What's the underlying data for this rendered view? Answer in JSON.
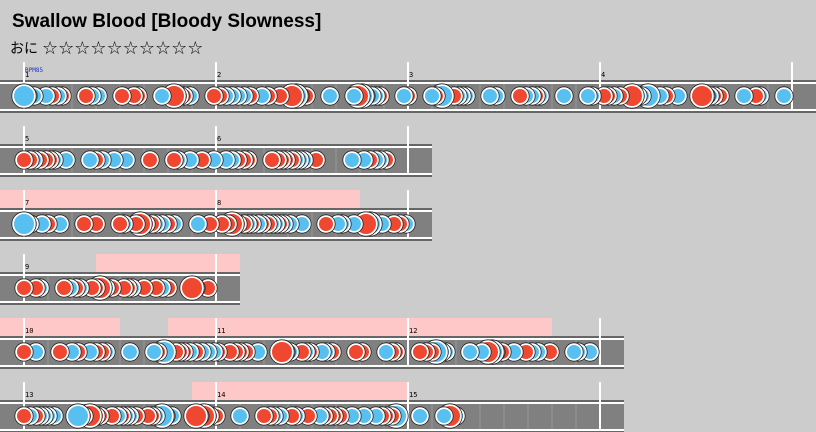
{
  "header": {
    "title": "Swallow Blood [Bloody Slowness]",
    "difficulty": "おに",
    "stars": "☆☆☆☆☆☆☆☆☆☆"
  },
  "bpm": "BPM85",
  "measures": [
    1,
    2,
    3,
    4,
    5,
    6,
    7,
    8,
    9,
    10,
    11,
    12,
    13,
    14,
    15
  ]
}
